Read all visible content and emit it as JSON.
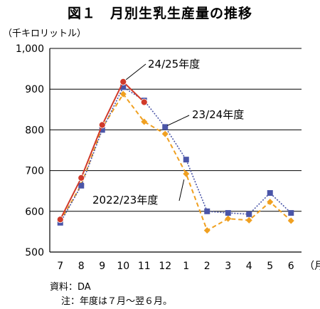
{
  "title": "図１　月別生乳生産量の推移",
  "unit": "（千キロリットル）",
  "month_unit": "（月）",
  "notes": {
    "source": "資料：DA",
    "period": "注：年度は７月～翌６月。"
  },
  "chart_data": {
    "type": "line",
    "title": "図１　月別生乳生産量の推移",
    "ylabel": "（千キロリットル）",
    "xlabel": "（月）",
    "categories": [
      "7",
      "8",
      "9",
      "10",
      "11",
      "12",
      "1",
      "2",
      "3",
      "4",
      "5",
      "6"
    ],
    "ylim": [
      500,
      1000
    ],
    "yticks": [
      500,
      600,
      700,
      800,
      900,
      1000
    ],
    "ytick_labels": [
      "500",
      "600",
      "700",
      "800",
      "900",
      "1,000"
    ],
    "grid": true,
    "series": [
      {
        "name": "2022/23年度",
        "color": "#f0a020",
        "line": "dashed",
        "marker": "diamond",
        "values": [
          575,
          665,
          805,
          888,
          820,
          790,
          692,
          553,
          582,
          578,
          623,
          577
        ]
      },
      {
        "name": "23/24年度",
        "color": "#4a55a8",
        "line": "dotted",
        "marker": "square",
        "values": [
          572,
          663,
          800,
          905,
          872,
          807,
          727,
          600,
          596,
          593,
          645,
          596
        ]
      },
      {
        "name": "24/25年度",
        "color": "#d03a2a",
        "line": "solid",
        "marker": "circle",
        "values": [
          580,
          682,
          812,
          918,
          868,
          null,
          null,
          null,
          null,
          null,
          null,
          null
        ]
      }
    ]
  }
}
